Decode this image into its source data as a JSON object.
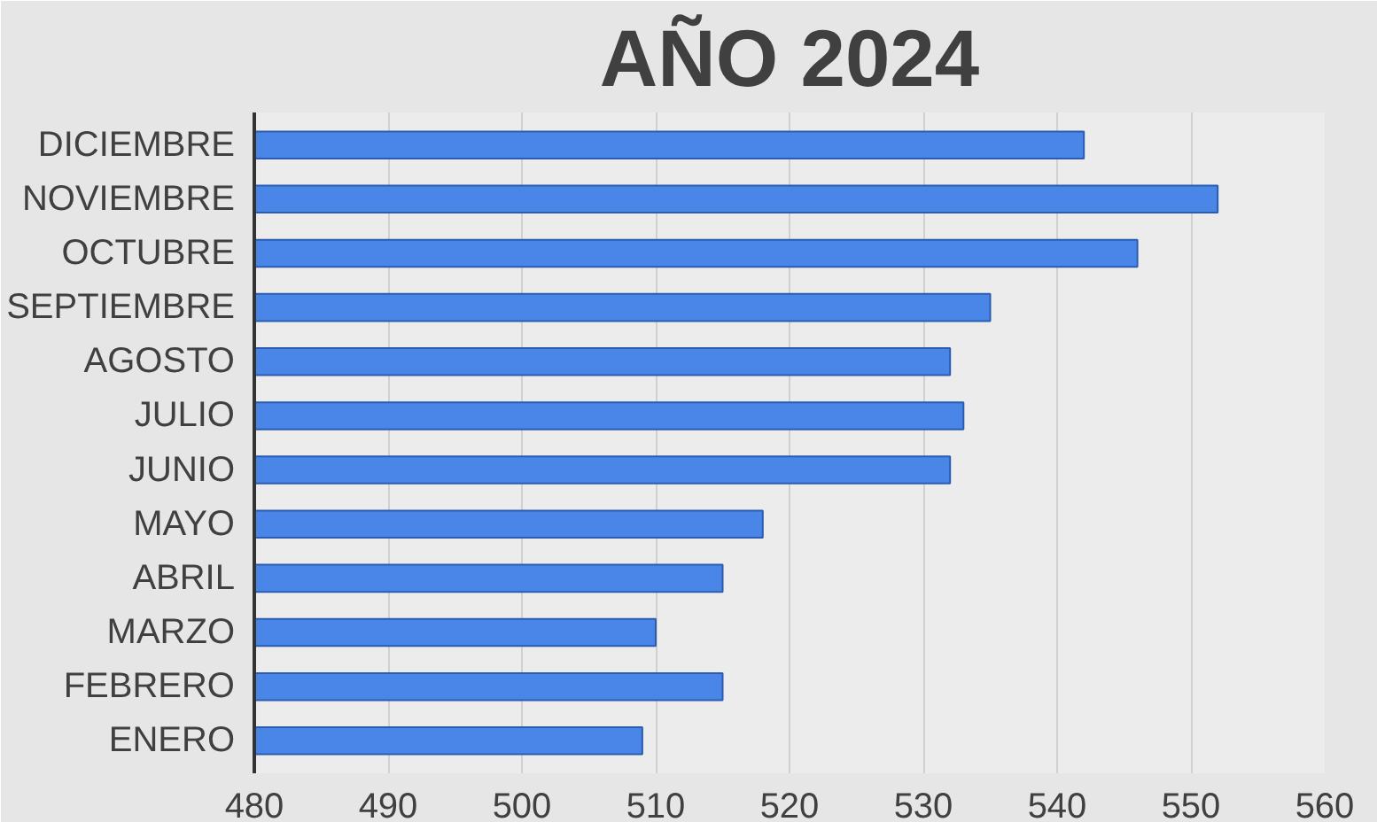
{
  "chart_data": {
    "type": "bar",
    "orientation": "horizontal",
    "title": "AÑO 2024",
    "categories": [
      "DICIEMBRE",
      "NOVIEMBRE",
      "OCTUBRE",
      "SEPTIEMBRE",
      "AGOSTO",
      "JULIO",
      "JUNIO",
      "MAYO",
      "ABRIL",
      "MARZO",
      "FEBRERO",
      "ENERO"
    ],
    "values": [
      542,
      552,
      546,
      535,
      532,
      533,
      532,
      518,
      515,
      510,
      515,
      509
    ],
    "color": "#4a86e8",
    "xlim": [
      480,
      560
    ],
    "xticks": [
      480,
      490,
      500,
      510,
      520,
      530,
      540,
      550,
      560
    ],
    "grid": "x"
  }
}
